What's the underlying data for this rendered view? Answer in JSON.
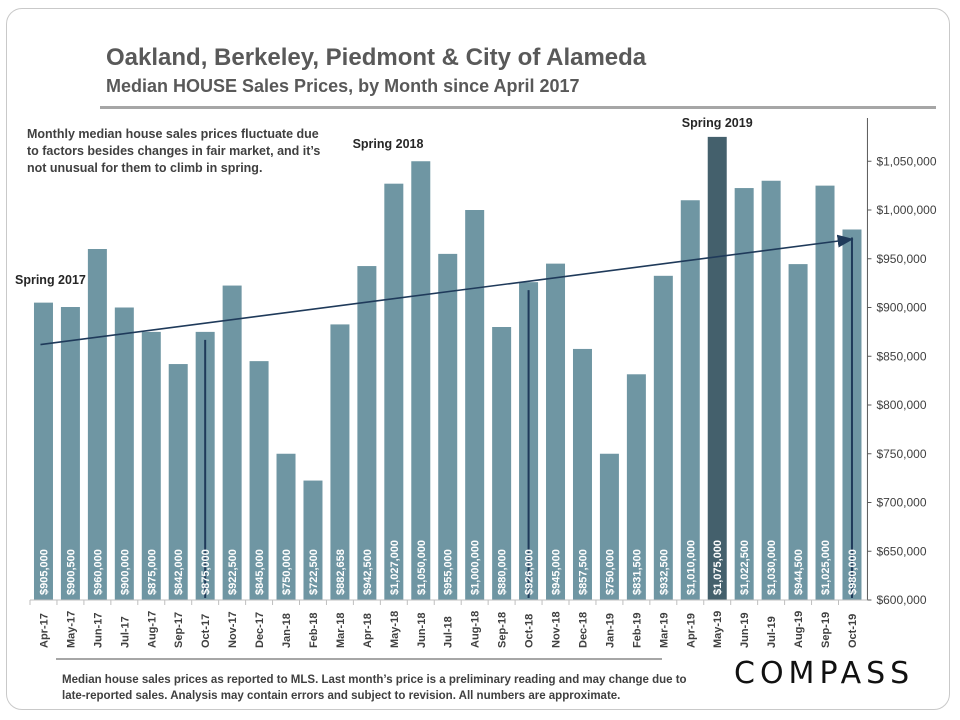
{
  "header": {
    "title": "Oakland, Berkeley, Piedmont & City of Alameda",
    "subtitle": "Median HOUSE Sales Prices, by Month since April 2017"
  },
  "note": "Monthly median house sales prices fluctuate due to factors besides changes in fair market, and it’s not unusual for them to climb in spring.",
  "footer": "Median house sales prices as reported to MLS. Last month’s price is a preliminary reading and may change due to late-reported sales. Analysis may contain errors and subject to revision. All numbers are approximate.",
  "logo": "COMPASS",
  "colors": {
    "bar": "#6f96a3",
    "highlight": "#44606c",
    "trend": "#1f3a5a",
    "marker": "#1f3a5a"
  },
  "chart_data": {
    "type": "bar",
    "categories": [
      "Apr-17",
      "May-17",
      "Jun-17",
      "Jul-17",
      "Aug-17",
      "Sep-17",
      "Oct-17",
      "Nov-17",
      "Dec-17",
      "Jan-18",
      "Feb-18",
      "Mar-18",
      "Apr-18",
      "May-18",
      "Jun-18",
      "Jul-18",
      "Aug-18",
      "Sep-18",
      "Oct-18",
      "Nov-18",
      "Dec-18",
      "Jan-19",
      "Feb-19",
      "Mar-19",
      "Apr-19",
      "May-19",
      "Jun-19",
      "Jul-19",
      "Aug-19",
      "Sep-19",
      "Oct-19"
    ],
    "values": [
      905000,
      900500,
      960000,
      900000,
      875000,
      842000,
      875000,
      922500,
      845000,
      750000,
      722500,
      882658,
      942500,
      1027000,
      1050000,
      955000,
      1000000,
      880000,
      926000,
      945000,
      857500,
      750000,
      831500,
      932500,
      1010000,
      1075000,
      1022500,
      1030000,
      944500,
      1025000,
      980000
    ],
    "data_labels": [
      "$905,000",
      "$900,500",
      "$960,000",
      "$900,000",
      "$875,000",
      "$842,000",
      "$875,000",
      "$922,500",
      "$845,000",
      "$750,000",
      "$722,500",
      "$882,658",
      "$942,500",
      "$1,027,000",
      "$1,050,000",
      "$955,000",
      "$1,000,000",
      "$880,000",
      "$926,000",
      "$945,000",
      "$857,500",
      "$750,000",
      "$831,500",
      "$932,500",
      "$1,010,000",
      "$1,075,000",
      "$1,022,500",
      "$1,030,000",
      "$944,500",
      "$1,025,000",
      "$980,000"
    ],
    "highlight_index": 25,
    "marker_indices": [
      6,
      18,
      30
    ],
    "ylim": [
      600000,
      1080000
    ],
    "yticks": [
      600000,
      650000,
      700000,
      750000,
      800000,
      850000,
      900000,
      950000,
      1000000,
      1050000
    ],
    "ytick_labels": [
      "$600,000",
      "$650,000",
      "$700,000",
      "$750,000",
      "$800,000",
      "$850,000",
      "$900,000",
      "$950,000",
      "$1,000,000",
      "$1,050,000"
    ],
    "trendline": {
      "start": 862000,
      "end": 970000
    },
    "annotations": [
      {
        "text": "Spring 2017",
        "index": 0
      },
      {
        "text": "Spring 2018",
        "index": 13
      },
      {
        "text": "Spring 2019",
        "index": 25
      }
    ],
    "xlabel": "",
    "ylabel": "",
    "grid": false,
    "legend": "none"
  }
}
